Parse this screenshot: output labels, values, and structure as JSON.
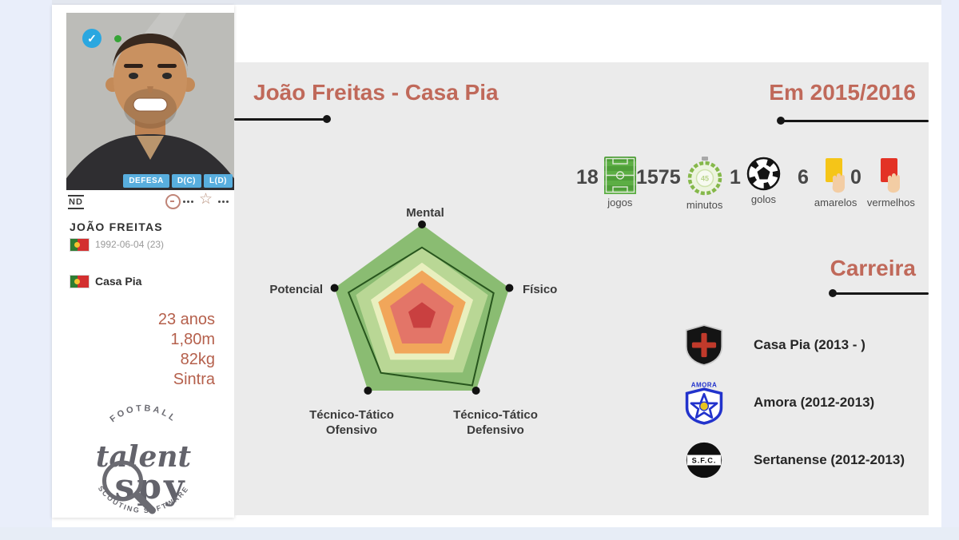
{
  "app": {
    "logo_arc_top": "FOOTBALL",
    "logo_word_1": "talent",
    "logo_word_2": "spy",
    "logo_arc_bottom": "SCOUTING SOFTWARE"
  },
  "icons": {
    "check_glyph": "✓",
    "star_glyph": "☆"
  },
  "player_card": {
    "nd_label": "ND",
    "position_badges": [
      "DEFESA",
      "D(C)",
      "L(D)"
    ],
    "name": "JOÃO FREITAS",
    "birth_date": "1992-06-04 (23)",
    "club": "Casa Pia",
    "details": [
      "23 anos",
      "1,80m",
      "82kg",
      "Sintra"
    ]
  },
  "main": {
    "title": "João Freitas - Casa Pia",
    "season_title": "Em 2015/2016",
    "career_title": "Carreira",
    "stats": [
      {
        "value": "18",
        "label": "jogos"
      },
      {
        "value": "1575",
        "label": "minutos"
      },
      {
        "value": "1",
        "label": "golos"
      },
      {
        "value": "6",
        "label": "amarelos"
      },
      {
        "value": "0",
        "label": "vermelhos"
      }
    ],
    "career": [
      {
        "club": "Casa Pia (2013 - )"
      },
      {
        "club": "Amora (2012-2013)",
        "crest_text": "AMORA"
      },
      {
        "club": "Sertanense (2012-2013)",
        "crest_text": "S.F.C."
      }
    ]
  },
  "chart_data": {
    "type": "radar",
    "categories": [
      "Mental",
      "Físico",
      "Técnico-Tático Defensivo",
      "Técnico-Tático Ofensivo",
      "Potencial"
    ],
    "values": [
      75,
      82,
      93,
      76,
      84
    ],
    "scale_max": 100,
    "ring_fractions": [
      1.0,
      0.755,
      0.585,
      0.5,
      0.365
    ],
    "ring_colors": [
      "#8abc72",
      "#b9d795",
      "#e9efbe",
      "#f1a65a",
      "#e37568"
    ],
    "center_fraction": 0.155,
    "center_color": "#c94040",
    "outline_color": "#27551d",
    "legend": "none"
  },
  "colors": {
    "accent_terracotta": "#c0695a",
    "panel_bg": "#ebebeb",
    "frame_blue": "#e9eefa",
    "badge_blue": "#58aede",
    "detail_text": "#b5604c",
    "line_black": "#161616"
  }
}
